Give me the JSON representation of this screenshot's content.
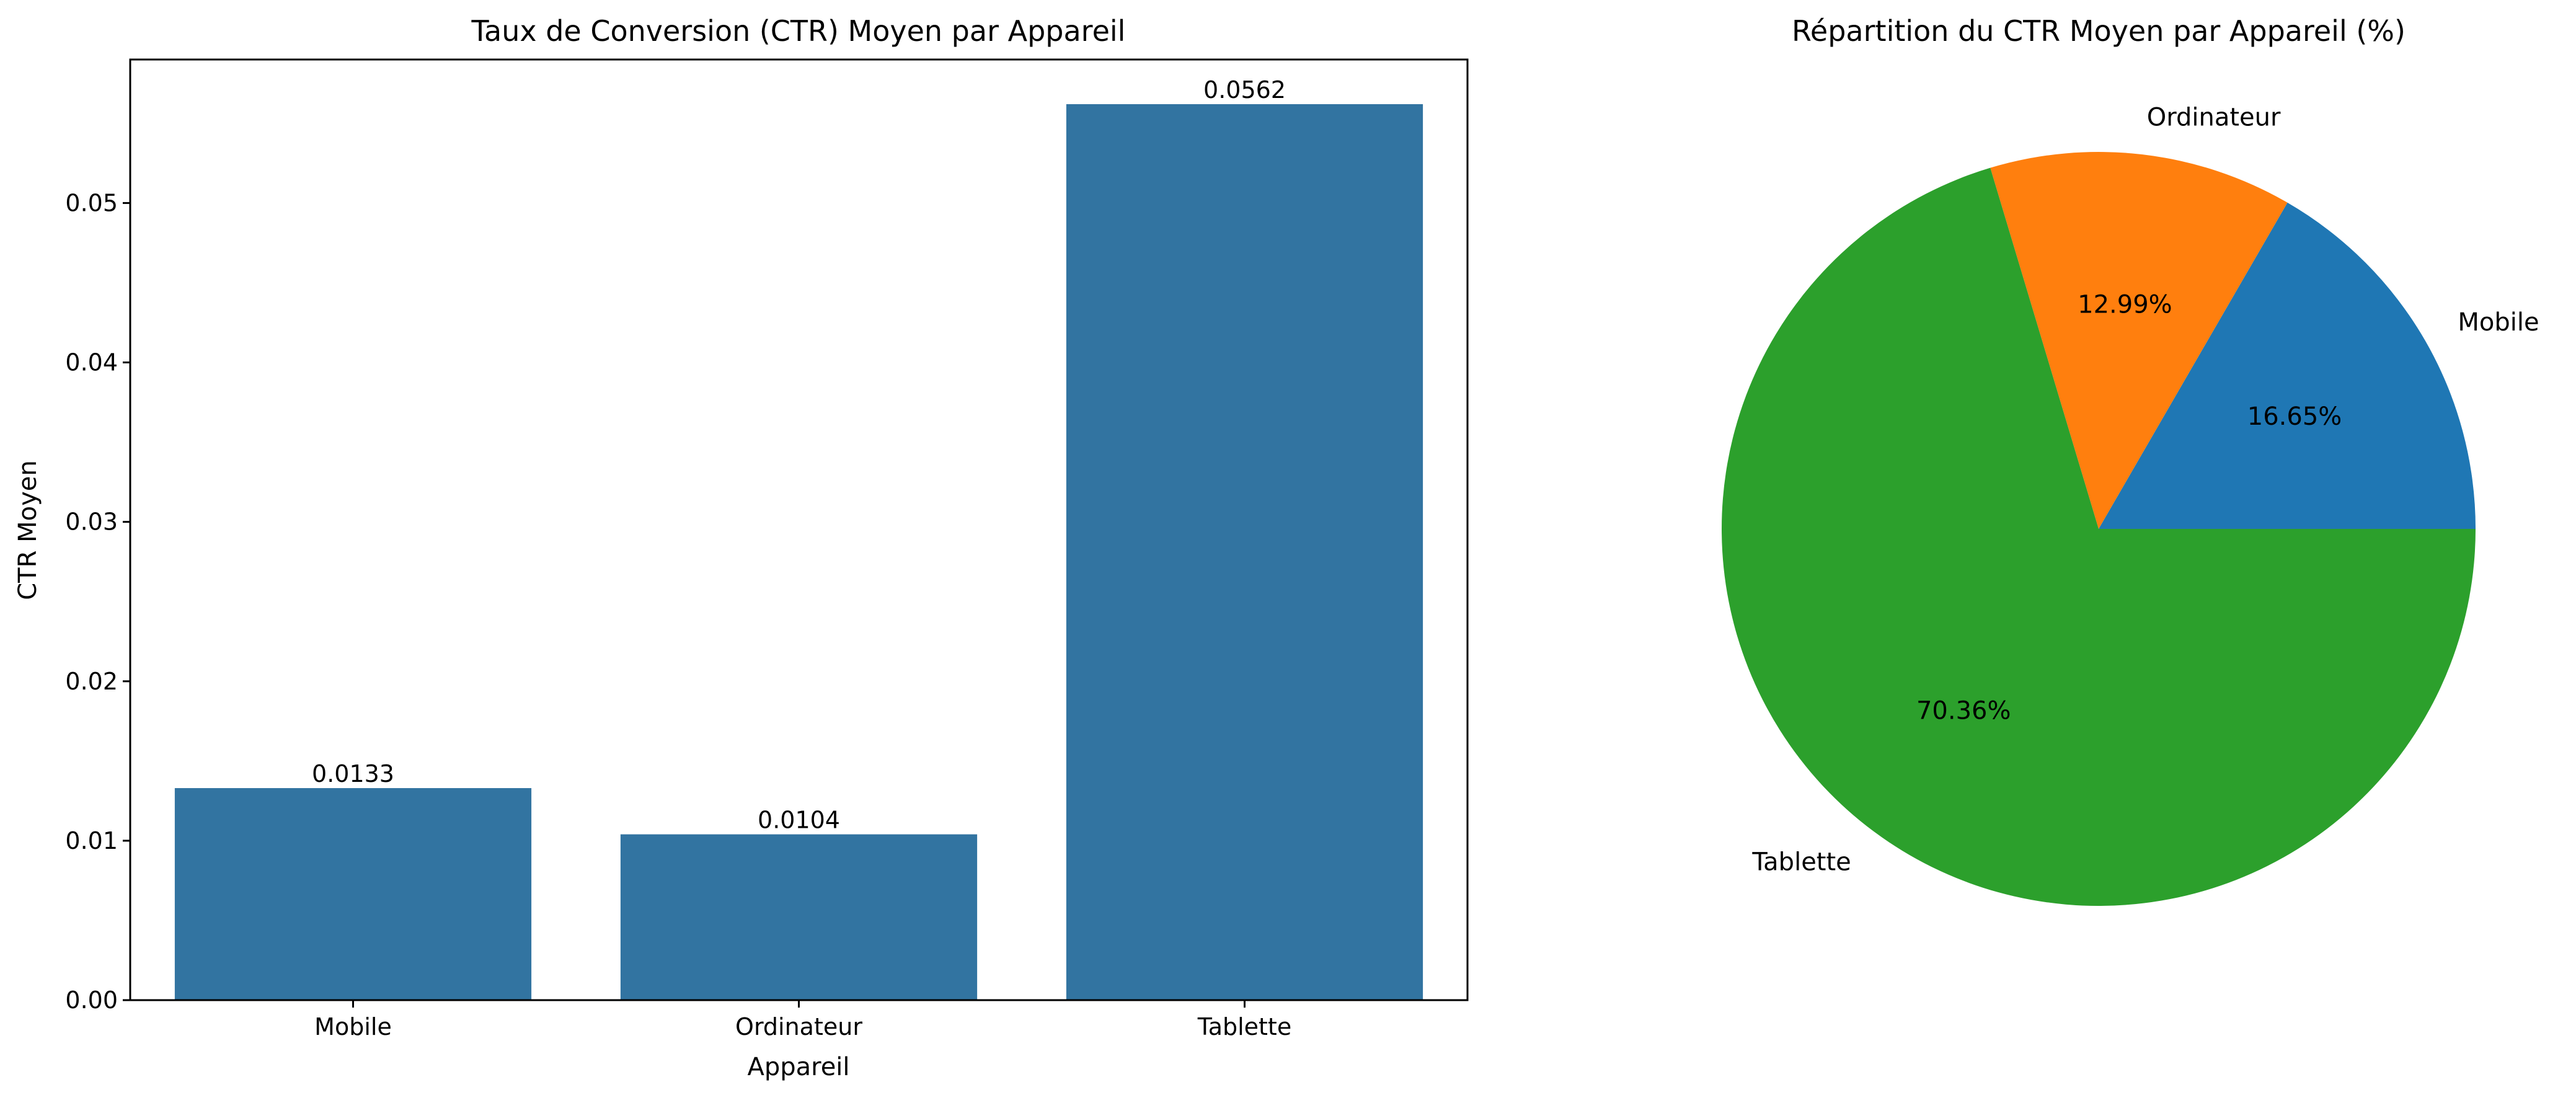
{
  "chart_data": [
    {
      "type": "bar",
      "title": "Taux de Conversion (CTR) Moyen par Appareil",
      "xlabel": "Appareil",
      "ylabel": "CTR Moyen",
      "categories": [
        "Mobile",
        "Ordinateur",
        "Tablette"
      ],
      "values": [
        0.0133,
        0.0104,
        0.0562
      ],
      "value_labels": [
        "0.0133",
        "0.0104",
        "0.0562"
      ],
      "ylim": [
        0,
        0.059
      ],
      "yticks": [
        0.0,
        0.01,
        0.02,
        0.03,
        0.04,
        0.05
      ],
      "ytick_labels": [
        "0.00",
        "0.01",
        "0.02",
        "0.03",
        "0.04",
        "0.05"
      ],
      "color": "#3274a1",
      "grid": false
    },
    {
      "type": "pie",
      "title": "Répartition du CTR Moyen par Appareil (%)",
      "labels": [
        "Mobile",
        "Ordinateur",
        "Tablette"
      ],
      "values": [
        16.65,
        12.99,
        70.36
      ],
      "pct_labels": [
        "16.65%",
        "12.99%",
        "70.36%"
      ],
      "colors": [
        "#1f77b4",
        "#ff7f0e",
        "#2ca02c"
      ]
    }
  ]
}
